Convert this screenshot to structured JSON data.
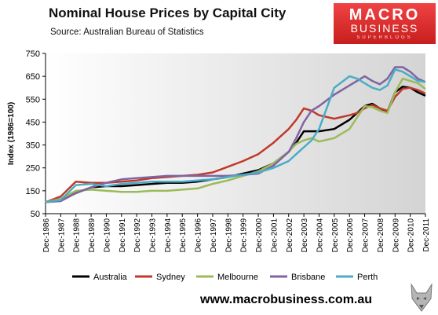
{
  "header": {
    "title": "Nominal House Prices by Capital City",
    "source": "Source: Australian Bureau of Statistics"
  },
  "logo": {
    "line1": "MACRO",
    "line2": "BUSINESS",
    "line3": "SUPERBLOGS",
    "color": "#d92b2b"
  },
  "footer": {
    "website": "www.macrobusiness.com.au"
  },
  "chart_data": {
    "type": "line",
    "title": "Nominal House Prices by Capital City",
    "subtitle": "Source: Australian Bureau of Statistics",
    "ylabel": "Index (1986=100)",
    "xlabel": "",
    "ylim": [
      50,
      750
    ],
    "xlim": [
      1986,
      2011
    ],
    "yticks": [
      "50",
      "150",
      "250",
      "350",
      "450",
      "550",
      "650",
      "750"
    ],
    "xticks": [
      "Dec-1986",
      "Dec-1987",
      "Dec-1988",
      "Dec-1989",
      "Dec-1990",
      "Dec-1991",
      "Dec-1992",
      "Dec-1993",
      "Dec-1994",
      "Dec-1995",
      "Dec-1996",
      "Dec-1997",
      "Dec-1998",
      "Dec-1999",
      "Dec-2000",
      "Dec-2001",
      "Dec-2002",
      "Dec-2003",
      "Dec-2004",
      "Dec-2005",
      "Dec-2006",
      "Dec-2007",
      "Dec-2008",
      "Dec-2009",
      "Dec-2010",
      "Dec-2011"
    ],
    "grid": false,
    "legend_position": "bottom",
    "series": [
      {
        "name": "Australia",
        "color": "#000000",
        "x": [
          1986,
          1987,
          1988,
          1989,
          1990,
          1991,
          1992,
          1993,
          1994,
          1995,
          1996,
          1997,
          1998,
          1999,
          2000,
          2001,
          2002,
          2002.5,
          2003,
          2003.5,
          2004,
          2005,
          2006,
          2006.5,
          2007,
          2007.5,
          2008,
          2008.5,
          2009,
          2009.5,
          2010,
          2010.5,
          2011
        ],
        "y": [
          100,
          110,
          140,
          165,
          170,
          170,
          175,
          180,
          185,
          185,
          190,
          200,
          210,
          225,
          240,
          270,
          320,
          360,
          410,
          410,
          410,
          420,
          460,
          490,
          520,
          530,
          510,
          495,
          580,
          605,
          600,
          580,
          565
        ]
      },
      {
        "name": "Sydney",
        "color": "#c0392b",
        "x": [
          1986,
          1987,
          1988,
          1989,
          1990,
          1991,
          1992,
          1993,
          1994,
          1995,
          1996,
          1997,
          1998,
          1999,
          2000,
          2001,
          2002,
          2002.5,
          2003,
          2003.5,
          2004,
          2005,
          2006,
          2006.5,
          2007,
          2007.5,
          2008,
          2008.5,
          2009,
          2009.5,
          2010,
          2010.5,
          2011
        ],
        "y": [
          100,
          125,
          190,
          185,
          185,
          190,
          195,
          205,
          210,
          215,
          220,
          230,
          255,
          280,
          310,
          360,
          420,
          460,
          510,
          500,
          480,
          465,
          480,
          490,
          510,
          525,
          510,
          500,
          560,
          595,
          600,
          590,
          575
        ]
      },
      {
        "name": "Melbourne",
        "color": "#9bbb59",
        "x": [
          1986,
          1987,
          1988,
          1989,
          1990,
          1991,
          1992,
          1993,
          1994,
          1995,
          1996,
          1997,
          1998,
          1999,
          2000,
          2001,
          2002,
          2002.5,
          2003,
          2003.5,
          2004,
          2005,
          2006,
          2006.5,
          2007,
          2007.5,
          2008,
          2008.5,
          2009,
          2009.5,
          2010,
          2010.5,
          2011
        ],
        "y": [
          100,
          115,
          150,
          155,
          150,
          145,
          145,
          150,
          150,
          155,
          160,
          180,
          195,
          215,
          235,
          270,
          320,
          355,
          370,
          380,
          365,
          380,
          420,
          470,
          520,
          515,
          500,
          490,
          580,
          640,
          630,
          620,
          595
        ]
      },
      {
        "name": "Brisbane",
        "color": "#8064a2",
        "x": [
          1986,
          1987,
          1988,
          1989,
          1990,
          1991,
          1992,
          1993,
          1994,
          1995,
          1996,
          1997,
          1998,
          1999,
          2000,
          2001,
          2002,
          2002.5,
          2003,
          2003.5,
          2004,
          2005,
          2006,
          2006.5,
          2007,
          2007.5,
          2008,
          2008.5,
          2009,
          2009.5,
          2010,
          2010.5,
          2011
        ],
        "y": [
          100,
          105,
          140,
          165,
          185,
          200,
          205,
          210,
          215,
          215,
          215,
          215,
          215,
          220,
          225,
          260,
          320,
          380,
          450,
          500,
          520,
          570,
          610,
          630,
          650,
          630,
          615,
          640,
          690,
          690,
          670,
          640,
          625
        ]
      },
      {
        "name": "Perth",
        "color": "#4bacc6",
        "x": [
          1986,
          1987,
          1988,
          1989,
          1990,
          1991,
          1992,
          1993,
          1994,
          1995,
          1996,
          1997,
          1998,
          1999,
          2000,
          2001,
          2002,
          2002.5,
          2003,
          2003.5,
          2004,
          2005,
          2006,
          2006.5,
          2007,
          2007.5,
          2008,
          2008.5,
          2009,
          2009.5,
          2010,
          2010.5,
          2011
        ],
        "y": [
          100,
          110,
          175,
          180,
          170,
          180,
          185,
          190,
          190,
          190,
          195,
          200,
          210,
          220,
          230,
          250,
          280,
          310,
          340,
          370,
          420,
          600,
          650,
          640,
          620,
          600,
          590,
          610,
          680,
          670,
          650,
          630,
          625
        ]
      }
    ]
  }
}
